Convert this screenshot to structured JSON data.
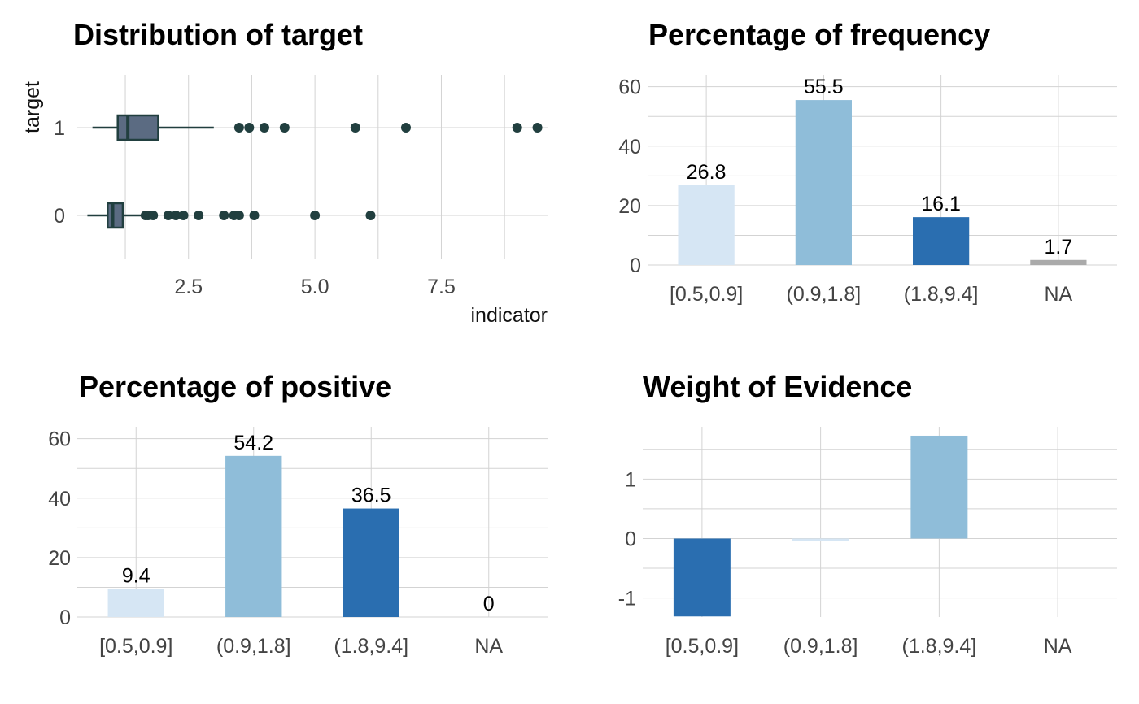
{
  "chart_data": [
    {
      "id": "distribution",
      "type": "boxplot",
      "title": "Distribution of target",
      "xlabel": "indicator",
      "ylabel": "target",
      "xlim": [
        0.3,
        9.6
      ],
      "x_ticks": [
        2.5,
        5.0,
        7.5
      ],
      "x_tick_labels": [
        "2.5",
        "5.0",
        "7.5"
      ],
      "categories": [
        "0",
        "1"
      ],
      "boxes": [
        {
          "category": "0",
          "whisker_low": 0.5,
          "q1": 0.9,
          "median": 1.0,
          "q3": 1.2,
          "whisker_high": 1.6,
          "outliers": [
            1.65,
            1.7,
            1.8,
            2.1,
            2.25,
            2.4,
            2.7,
            3.2,
            3.4,
            3.5,
            3.8,
            5.0,
            6.1
          ]
        },
        {
          "category": "1",
          "whisker_low": 0.6,
          "q1": 1.1,
          "median": 1.3,
          "q3": 1.9,
          "whisker_high": 3.0,
          "outliers": [
            3.5,
            3.7,
            4.0,
            4.4,
            5.8,
            6.8,
            9.0,
            9.4
          ]
        }
      ],
      "colors": {
        "box_fill": "#5b6b82",
        "stroke": "#213f3f"
      },
      "grid": true
    },
    {
      "id": "frequency",
      "type": "bar",
      "title": "Percentage of frequency",
      "categories": [
        "[0.5,0.9]",
        "(0.9,1.8]",
        "(1.8,9.4]",
        "NA"
      ],
      "values": [
        26.8,
        55.5,
        16.1,
        1.7
      ],
      "data_labels": [
        "26.8",
        "55.5",
        "16.1",
        "1.7"
      ],
      "colors": [
        "#d6e6f4",
        "#8fbdd9",
        "#2a6eb0",
        "#aaaaaa"
      ],
      "ylim": [
        0,
        64
      ],
      "y_ticks": [
        0,
        20,
        40,
        60
      ],
      "grid": true
    },
    {
      "id": "positive",
      "type": "bar",
      "title": "Percentage of positive",
      "categories": [
        "[0.5,0.9]",
        "(0.9,1.8]",
        "(1.8,9.4]",
        "NA"
      ],
      "values": [
        9.4,
        54.2,
        36.5,
        0
      ],
      "data_labels": [
        "9.4",
        "54.2",
        "36.5",
        "0"
      ],
      "colors": [
        "#d6e6f4",
        "#8fbdd9",
        "#2a6eb0",
        "#aaaaaa"
      ],
      "ylim": [
        0,
        64
      ],
      "y_ticks": [
        0,
        20,
        40,
        60
      ],
      "grid": true
    },
    {
      "id": "woe",
      "type": "bar",
      "title": "Weight of Evidence",
      "categories": [
        "[0.5,0.9]",
        "(0.9,1.8]",
        "(1.8,9.4]",
        "NA"
      ],
      "values": [
        -1.31,
        -0.04,
        1.73,
        0
      ],
      "colors": [
        "#2a6eb0",
        "#d6e6f4",
        "#8fbdd9",
        "#aaaaaa"
      ],
      "ylim": [
        -1.32,
        1.88
      ],
      "y_ticks": [
        -1,
        0,
        1
      ],
      "y_tick_labels": [
        "-1",
        "0",
        "1"
      ],
      "grid": true
    }
  ]
}
